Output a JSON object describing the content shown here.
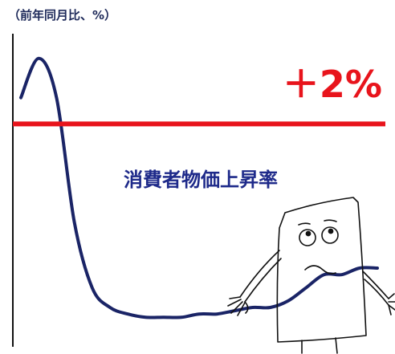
{
  "unit_label": "（前年同月比、%）",
  "chart_data": {
    "type": "line",
    "title": "",
    "xlabel": "",
    "ylabel": "（前年同月比、%）",
    "ylim": [
      -1.4,
      3.4
    ],
    "grid": false,
    "series": [
      {
        "name": "消費者物価上昇率",
        "color": "#1a2466",
        "x": [
          0,
          1,
          2,
          3,
          4,
          5,
          6,
          7,
          8,
          9,
          10,
          11,
          12,
          13,
          14,
          15,
          16,
          17,
          18,
          19,
          20
        ],
        "y": [
          2.4,
          3.0,
          2.4,
          0.5,
          -0.5,
          -0.8,
          -0.9,
          -0.95,
          -0.95,
          -0.95,
          -0.9,
          -0.9,
          -0.85,
          -0.8,
          -0.8,
          -0.7,
          -0.5,
          -0.3,
          -0.3,
          -0.2,
          -0.2
        ]
      }
    ],
    "reference_line": {
      "value": 2.0,
      "label": "＋2%",
      "color": "#e8141c"
    }
  },
  "annotations": {
    "series_label": "消費者物価上昇率",
    "series_label_color": "#1e2a8a"
  },
  "illustration": {
    "name": "worried-character",
    "stroke": "#111111"
  }
}
